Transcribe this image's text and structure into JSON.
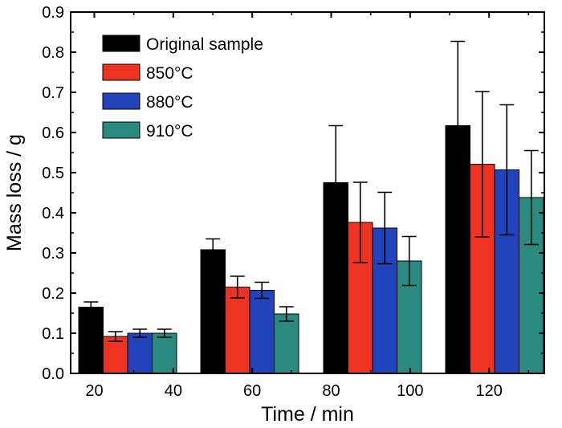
{
  "chart_data": {
    "type": "bar",
    "xlabel": "Time / min",
    "ylabel": "Mass loss / g",
    "ylim": [
      0,
      0.9
    ],
    "yticks": [
      "0.0",
      "0.1",
      "0.2",
      "0.3",
      "0.4",
      "0.5",
      "0.6",
      "0.7",
      "0.8",
      "0.9"
    ],
    "xticks": [
      {
        "label": "20",
        "value": 20
      },
      {
        "label": "40",
        "value": 40
      },
      {
        "label": "60",
        "value": 60
      },
      {
        "label": "80",
        "value": 80
      },
      {
        "label": "100",
        "value": 100
      },
      {
        "label": "120",
        "value": 120
      }
    ],
    "categories": [
      "20",
      "60",
      "80",
      "120"
    ],
    "legend_position": "top-left",
    "grid": false,
    "series": [
      {
        "name": "Original sample",
        "color": "#000000",
        "values": [
          0.165,
          0.308,
          0.475,
          0.617
        ],
        "errors": [
          0.013,
          0.027,
          0.142,
          0.21
        ]
      },
      {
        "name": "850°C",
        "color": "#ee3322",
        "values": [
          0.092,
          0.215,
          0.376,
          0.521
        ],
        "errors": [
          0.012,
          0.027,
          0.1,
          0.181
        ]
      },
      {
        "name": "880°C",
        "color": "#2244bb",
        "values": [
          0.1,
          0.207,
          0.362,
          0.507
        ],
        "errors": [
          0.01,
          0.02,
          0.089,
          0.162
        ]
      },
      {
        "name": "910°C",
        "color": "#2a8a80",
        "values": [
          0.1,
          0.148,
          0.28,
          0.438
        ],
        "errors": [
          0.01,
          0.018,
          0.061,
          0.117
        ]
      }
    ]
  }
}
